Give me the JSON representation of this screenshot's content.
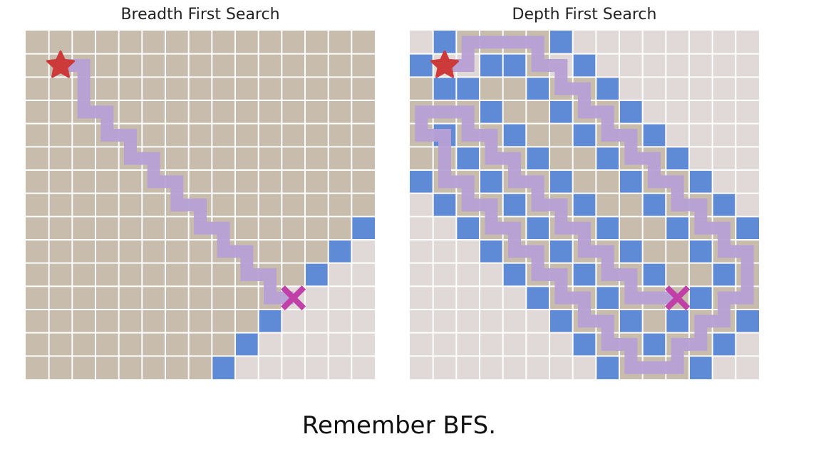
{
  "panels": {
    "left": {
      "title": "Breadth First Search"
    },
    "right": {
      "title": "Depth First Search"
    }
  },
  "caption": "Remember BFS.",
  "colors": {
    "explored": "#c8bcac",
    "unexplored": "#e1d9d8",
    "frontier": "#5f8bd6",
    "path": "#b79fd5",
    "gridline": "#ffffff",
    "start": "#cc3a3a",
    "goal": "#c040a8"
  },
  "icons": {
    "start": "star-icon",
    "goal": "x-mark-icon"
  },
  "grid": {
    "cols": 15,
    "rows": 15
  },
  "bfs": {
    "start": [
      1,
      1
    ],
    "goal": [
      11,
      11
    ],
    "frontier": [
      [
        14,
        8
      ],
      [
        13,
        9
      ],
      [
        12,
        10
      ],
      [
        10,
        12
      ],
      [
        9,
        13
      ],
      [
        8,
        14
      ]
    ],
    "path": [
      [
        1,
        1
      ],
      [
        2,
        1
      ],
      [
        2,
        2
      ],
      [
        2,
        3
      ],
      [
        3,
        3
      ],
      [
        3,
        4
      ],
      [
        4,
        4
      ],
      [
        4,
        5
      ],
      [
        5,
        5
      ],
      [
        5,
        6
      ],
      [
        6,
        6
      ],
      [
        6,
        7
      ],
      [
        7,
        7
      ],
      [
        7,
        8
      ],
      [
        8,
        8
      ],
      [
        8,
        9
      ],
      [
        9,
        9
      ],
      [
        9,
        10
      ],
      [
        10,
        10
      ],
      [
        10,
        11
      ],
      [
        11,
        11
      ]
    ]
  },
  "dfs": {
    "start": [
      1,
      1
    ],
    "goal": [
      11,
      11
    ],
    "explored": [
      [
        1,
        0
      ],
      [
        2,
        0
      ],
      [
        3,
        0
      ],
      [
        4,
        0
      ],
      [
        5,
        0
      ],
      [
        0,
        2
      ],
      [
        0,
        3
      ],
      [
        0,
        4
      ],
      [
        0,
        5
      ],
      [
        0,
        6
      ],
      [
        1,
        2
      ],
      [
        1,
        3
      ],
      [
        2,
        3
      ],
      [
        1,
        4
      ],
      [
        1,
        5
      ],
      [
        1,
        6
      ],
      [
        2,
        4
      ],
      [
        2,
        5
      ],
      [
        2,
        6
      ],
      [
        2,
        7
      ],
      [
        3,
        2
      ],
      [
        3,
        3
      ],
      [
        3,
        4
      ],
      [
        3,
        5
      ],
      [
        3,
        6
      ],
      [
        3,
        7
      ],
      [
        3,
        8
      ],
      [
        4,
        2
      ],
      [
        4,
        3
      ],
      [
        4,
        4
      ],
      [
        4,
        5
      ],
      [
        4,
        6
      ],
      [
        4,
        7
      ],
      [
        4,
        8
      ],
      [
        4,
        9
      ],
      [
        5,
        1
      ],
      [
        5,
        2
      ],
      [
        5,
        3
      ],
      [
        5,
        4
      ],
      [
        5,
        5
      ],
      [
        5,
        6
      ],
      [
        5,
        7
      ],
      [
        5,
        8
      ],
      [
        5,
        9
      ],
      [
        5,
        10
      ],
      [
        6,
        2
      ],
      [
        6,
        3
      ],
      [
        6,
        4
      ],
      [
        6,
        5
      ],
      [
        6,
        6
      ],
      [
        6,
        7
      ],
      [
        6,
        8
      ],
      [
        6,
        9
      ],
      [
        6,
        10
      ],
      [
        6,
        11
      ],
      [
        7,
        2
      ],
      [
        7,
        3
      ],
      [
        7,
        4
      ],
      [
        7,
        5
      ],
      [
        7,
        6
      ],
      [
        7,
        7
      ],
      [
        7,
        8
      ],
      [
        7,
        9
      ],
      [
        7,
        10
      ],
      [
        7,
        11
      ],
      [
        7,
        12
      ],
      [
        8,
        3
      ],
      [
        8,
        4
      ],
      [
        8,
        5
      ],
      [
        8,
        6
      ],
      [
        8,
        7
      ],
      [
        8,
        8
      ],
      [
        8,
        9
      ],
      [
        8,
        10
      ],
      [
        8,
        11
      ],
      [
        8,
        12
      ],
      [
        8,
        13
      ],
      [
        9,
        4
      ],
      [
        9,
        5
      ],
      [
        9,
        6
      ],
      [
        9,
        7
      ],
      [
        9,
        8
      ],
      [
        9,
        9
      ],
      [
        9,
        10
      ],
      [
        9,
        11
      ],
      [
        9,
        12
      ],
      [
        9,
        13
      ],
      [
        9,
        14
      ],
      [
        10,
        5
      ],
      [
        10,
        6
      ],
      [
        10,
        7
      ],
      [
        10,
        8
      ],
      [
        10,
        9
      ],
      [
        10,
        10
      ],
      [
        10,
        11
      ],
      [
        10,
        12
      ],
      [
        10,
        13
      ],
      [
        10,
        14
      ],
      [
        11,
        6
      ],
      [
        11,
        7
      ],
      [
        11,
        8
      ],
      [
        11,
        9
      ],
      [
        11,
        10
      ],
      [
        11,
        11
      ],
      [
        11,
        12
      ],
      [
        11,
        13
      ],
      [
        11,
        14
      ],
      [
        12,
        7
      ],
      [
        12,
        8
      ],
      [
        12,
        9
      ],
      [
        12,
        10
      ],
      [
        12,
        11
      ],
      [
        12,
        12
      ],
      [
        12,
        13
      ],
      [
        13,
        8
      ],
      [
        13,
        9
      ],
      [
        13,
        10
      ],
      [
        13,
        11
      ],
      [
        13,
        12
      ],
      [
        13,
        13
      ],
      [
        14,
        9
      ],
      [
        14,
        10
      ],
      [
        14,
        11
      ],
      [
        14,
        12
      ]
    ],
    "frontier": [
      [
        1,
        0
      ],
      [
        6,
        0
      ],
      [
        0,
        1
      ],
      [
        3,
        1
      ],
      [
        4,
        1
      ],
      [
        7,
        1
      ],
      [
        1,
        2
      ],
      [
        2,
        2
      ],
      [
        5,
        2
      ],
      [
        8,
        2
      ],
      [
        3,
        3
      ],
      [
        6,
        3
      ],
      [
        9,
        3
      ],
      [
        1,
        4
      ],
      [
        4,
        4
      ],
      [
        7,
        4
      ],
      [
        10,
        4
      ],
      [
        2,
        5
      ],
      [
        5,
        5
      ],
      [
        8,
        5
      ],
      [
        11,
        5
      ],
      [
        0,
        6
      ],
      [
        3,
        6
      ],
      [
        6,
        6
      ],
      [
        9,
        6
      ],
      [
        12,
        6
      ],
      [
        1,
        7
      ],
      [
        4,
        7
      ],
      [
        7,
        7
      ],
      [
        10,
        7
      ],
      [
        13,
        7
      ],
      [
        2,
        8
      ],
      [
        5,
        8
      ],
      [
        8,
        8
      ],
      [
        11,
        8
      ],
      [
        14,
        8
      ],
      [
        3,
        9
      ],
      [
        6,
        9
      ],
      [
        9,
        9
      ],
      [
        12,
        9
      ],
      [
        4,
        10
      ],
      [
        7,
        10
      ],
      [
        10,
        10
      ],
      [
        13,
        10
      ],
      [
        5,
        11
      ],
      [
        8,
        11
      ],
      [
        12,
        11
      ],
      [
        6,
        12
      ],
      [
        9,
        12
      ],
      [
        11,
        12
      ],
      [
        14,
        12
      ],
      [
        7,
        13
      ],
      [
        10,
        13
      ],
      [
        13,
        13
      ],
      [
        8,
        14
      ],
      [
        12,
        14
      ]
    ],
    "path": [
      [
        1,
        1
      ],
      [
        2,
        1
      ],
      [
        2,
        0
      ],
      [
        3,
        0
      ],
      [
        4,
        0
      ],
      [
        5,
        0
      ],
      [
        5,
        1
      ],
      [
        6,
        1
      ],
      [
        6,
        2
      ],
      [
        7,
        2
      ],
      [
        7,
        3
      ],
      [
        8,
        3
      ],
      [
        8,
        4
      ],
      [
        9,
        4
      ],
      [
        9,
        5
      ],
      [
        10,
        5
      ],
      [
        10,
        6
      ],
      [
        11,
        6
      ],
      [
        11,
        7
      ],
      [
        12,
        7
      ],
      [
        12,
        8
      ],
      [
        13,
        8
      ],
      [
        13,
        9
      ],
      [
        14,
        9
      ],
      [
        14,
        10
      ],
      [
        14,
        11
      ],
      [
        13,
        11
      ],
      [
        13,
        12
      ],
      [
        12,
        12
      ],
      [
        12,
        13
      ],
      [
        11,
        13
      ],
      [
        11,
        14
      ],
      [
        10,
        14
      ],
      [
        9,
        14
      ],
      [
        9,
        13
      ],
      [
        8,
        13
      ],
      [
        8,
        12
      ],
      [
        7,
        12
      ],
      [
        7,
        11
      ],
      [
        6,
        11
      ],
      [
        6,
        10
      ],
      [
        5,
        10
      ],
      [
        5,
        9
      ],
      [
        4,
        9
      ],
      [
        4,
        8
      ],
      [
        3,
        8
      ],
      [
        3,
        7
      ],
      [
        2,
        7
      ],
      [
        2,
        6
      ],
      [
        1,
        6
      ],
      [
        1,
        5
      ],
      [
        1,
        4
      ],
      [
        0,
        4
      ],
      [
        0,
        3
      ],
      [
        1,
        3
      ],
      [
        2,
        3
      ],
      [
        2,
        4
      ],
      [
        3,
        4
      ],
      [
        3,
        5
      ],
      [
        4,
        5
      ],
      [
        4,
        6
      ],
      [
        5,
        6
      ],
      [
        5,
        7
      ],
      [
        6,
        7
      ],
      [
        6,
        8
      ],
      [
        7,
        8
      ],
      [
        7,
        9
      ],
      [
        8,
        9
      ],
      [
        8,
        10
      ],
      [
        9,
        10
      ],
      [
        9,
        11
      ],
      [
        10,
        11
      ],
      [
        11,
        11
      ]
    ]
  }
}
